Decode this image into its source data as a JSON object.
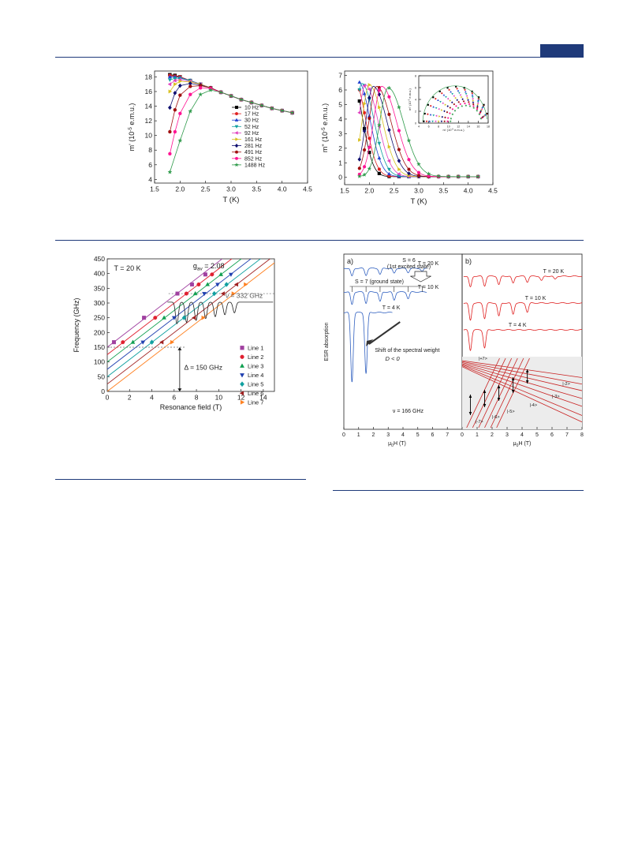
{
  "page": {
    "badge_color": "#1f3a7a",
    "rule_color": "#1f3a7a"
  },
  "chart_data": [
    {
      "id": "ac-real",
      "type": "line",
      "xlabel": "T (K)",
      "ylabel": "m' (10",
      "ylabel_exp": "-5",
      "ylabel_unit": " e.m.u.)",
      "xlim": [
        1.5,
        4.5
      ],
      "ylim": [
        3.5,
        18.8
      ],
      "xticks": [
        1.5,
        2.0,
        2.5,
        3.0,
        3.5,
        4.0,
        4.5
      ],
      "yticks": [
        4,
        6,
        8,
        10,
        12,
        14,
        16,
        18
      ],
      "legend_position": "center-right",
      "series": [
        {
          "name": "10 Hz",
          "color": "#000000",
          "marker": "square",
          "points": [
            [
              1.8,
              18.3
            ],
            [
              1.9,
              18.2
            ],
            [
              2.0,
              18.0
            ],
            [
              2.2,
              17.5
            ],
            [
              2.4,
              17.0
            ],
            [
              2.6,
              16.5
            ],
            [
              2.8,
              15.9
            ],
            [
              3.0,
              15.4
            ],
            [
              3.2,
              14.9
            ],
            [
              3.4,
              14.5
            ],
            [
              3.6,
              14.1
            ],
            [
              3.8,
              13.7
            ],
            [
              4.0,
              13.4
            ],
            [
              4.2,
              13.1
            ]
          ]
        },
        {
          "name": "17 Hz",
          "color": "#e02020",
          "marker": "circle",
          "points": [
            [
              1.8,
              18.2
            ],
            [
              1.9,
              18.1
            ],
            [
              2.0,
              18.0
            ],
            [
              2.2,
              17.5
            ],
            [
              2.4,
              17.0
            ],
            [
              2.6,
              16.5
            ],
            [
              2.8,
              15.9
            ],
            [
              3.0,
              15.4
            ],
            [
              3.2,
              14.9
            ],
            [
              3.4,
              14.5
            ],
            [
              3.6,
              14.1
            ],
            [
              3.8,
              13.7
            ],
            [
              4.0,
              13.4
            ],
            [
              4.2,
              13.1
            ]
          ]
        },
        {
          "name": "30 Hz",
          "color": "#2040d0",
          "marker": "triangle",
          "points": [
            [
              1.8,
              18.0
            ],
            [
              1.9,
              18.0
            ],
            [
              2.0,
              17.9
            ],
            [
              2.2,
              17.5
            ],
            [
              2.4,
              17.0
            ],
            [
              2.6,
              16.5
            ],
            [
              2.8,
              15.9
            ],
            [
              3.0,
              15.4
            ],
            [
              3.2,
              14.9
            ],
            [
              3.4,
              14.5
            ],
            [
              3.6,
              14.1
            ],
            [
              3.8,
              13.7
            ],
            [
              4.0,
              13.4
            ],
            [
              4.2,
              13.1
            ]
          ]
        },
        {
          "name": "52 Hz",
          "color": "#10a0a0",
          "marker": "tri-down",
          "points": [
            [
              1.8,
              17.6
            ],
            [
              1.9,
              17.8
            ],
            [
              2.0,
              17.8
            ],
            [
              2.2,
              17.5
            ],
            [
              2.4,
              17.0
            ],
            [
              2.6,
              16.5
            ],
            [
              2.8,
              15.9
            ],
            [
              3.0,
              15.4
            ],
            [
              3.2,
              14.9
            ],
            [
              3.4,
              14.5
            ],
            [
              3.6,
              14.1
            ],
            [
              3.8,
              13.7
            ],
            [
              4.0,
              13.4
            ],
            [
              4.2,
              13.1
            ]
          ]
        },
        {
          "name": "92 Hz",
          "color": "#e040c0",
          "marker": "tri-left",
          "points": [
            [
              1.8,
              17.0
            ],
            [
              1.9,
              17.5
            ],
            [
              2.0,
              17.6
            ],
            [
              2.2,
              17.4
            ],
            [
              2.4,
              17.0
            ],
            [
              2.6,
              16.5
            ],
            [
              2.8,
              15.9
            ],
            [
              3.0,
              15.4
            ],
            [
              3.2,
              14.9
            ],
            [
              3.4,
              14.5
            ],
            [
              3.6,
              14.1
            ],
            [
              3.8,
              13.7
            ],
            [
              4.0,
              13.4
            ],
            [
              4.2,
              13.1
            ]
          ]
        },
        {
          "name": "161 Hz",
          "color": "#d8c020",
          "marker": "tri-right",
          "points": [
            [
              1.8,
              16.0
            ],
            [
              1.9,
              17.0
            ],
            [
              2.0,
              17.4
            ],
            [
              2.2,
              17.3
            ],
            [
              2.4,
              17.0
            ],
            [
              2.6,
              16.5
            ],
            [
              2.8,
              15.9
            ],
            [
              3.0,
              15.4
            ],
            [
              3.2,
              14.9
            ],
            [
              3.4,
              14.5
            ],
            [
              3.6,
              14.1
            ],
            [
              3.8,
              13.7
            ],
            [
              4.0,
              13.4
            ],
            [
              4.2,
              13.1
            ]
          ]
        },
        {
          "name": "281 Hz",
          "color": "#101070",
          "marker": "diamond",
          "points": [
            [
              1.8,
              13.8
            ],
            [
              1.9,
              15.8
            ],
            [
              2.0,
              16.8
            ],
            [
              2.2,
              17.1
            ],
            [
              2.4,
              16.9
            ],
            [
              2.6,
              16.5
            ],
            [
              2.8,
              15.9
            ],
            [
              3.0,
              15.4
            ],
            [
              3.2,
              14.9
            ],
            [
              3.4,
              14.5
            ],
            [
              3.6,
              14.1
            ],
            [
              3.8,
              13.7
            ],
            [
              4.0,
              13.4
            ],
            [
              4.2,
              13.1
            ]
          ]
        },
        {
          "name": "491 Hz",
          "color": "#a01010",
          "marker": "circle",
          "points": [
            [
              1.8,
              10.5
            ],
            [
              1.9,
              13.5
            ],
            [
              2.0,
              15.5
            ],
            [
              2.2,
              16.7
            ],
            [
              2.4,
              16.8
            ],
            [
              2.6,
              16.5
            ],
            [
              2.8,
              15.9
            ],
            [
              3.0,
              15.4
            ],
            [
              3.2,
              14.9
            ],
            [
              3.4,
              14.5
            ],
            [
              3.6,
              14.1
            ],
            [
              3.8,
              13.7
            ],
            [
              4.0,
              13.4
            ],
            [
              4.2,
              13.1
            ]
          ]
        },
        {
          "name": "852 Hz",
          "color": "#ff1493",
          "marker": "circle",
          "points": [
            [
              1.8,
              7.5
            ],
            [
              1.9,
              10.5
            ],
            [
              2.0,
              13.0
            ],
            [
              2.2,
              15.6
            ],
            [
              2.4,
              16.5
            ],
            [
              2.6,
              16.4
            ],
            [
              2.8,
              15.9
            ],
            [
              3.0,
              15.4
            ],
            [
              3.2,
              14.9
            ],
            [
              3.4,
              14.5
            ],
            [
              3.6,
              14.1
            ],
            [
              3.8,
              13.7
            ],
            [
              4.0,
              13.4
            ],
            [
              4.2,
              13.1
            ]
          ]
        },
        {
          "name": "1488 Hz",
          "color": "#2e9a4a",
          "marker": "star",
          "points": [
            [
              1.8,
              5.0
            ],
            [
              2.0,
              9.3
            ],
            [
              2.2,
              13.3
            ],
            [
              2.4,
              15.6
            ],
            [
              2.6,
              16.2
            ],
            [
              2.8,
              15.9
            ],
            [
              3.0,
              15.4
            ],
            [
              3.2,
              14.9
            ],
            [
              3.4,
              14.5
            ],
            [
              3.6,
              14.1
            ],
            [
              3.8,
              13.7
            ],
            [
              4.0,
              13.4
            ],
            [
              4.2,
              13.1
            ]
          ]
        }
      ]
    },
    {
      "id": "ac-imag",
      "type": "line",
      "xlabel": "T (K)",
      "ylabel": "m\" (10",
      "ylabel_exp": "-5",
      "ylabel_unit": " e.m.u.)",
      "xlim": [
        1.5,
        4.5
      ],
      "ylim": [
        -0.5,
        7.3
      ],
      "xticks": [
        1.5,
        2.0,
        2.5,
        3.0,
        3.5,
        4.0,
        4.5
      ],
      "yticks": [
        0,
        1,
        2,
        3,
        4,
        5,
        6,
        7
      ],
      "peak_T": [
        1.65,
        1.7,
        1.78,
        1.85,
        1.92,
        2.0,
        2.08,
        2.15,
        2.25,
        2.38
      ],
      "peak_height": [
        6.7,
        6.6,
        6.5,
        6.4,
        6.3,
        6.3,
        6.2,
        6.2,
        6.2,
        6.1
      ],
      "colors": [
        "#000000",
        "#e02020",
        "#2040d0",
        "#10a0a0",
        "#e040c0",
        "#d8c020",
        "#101070",
        "#a01010",
        "#ff1493",
        "#2e9a4a"
      ],
      "inset": {
        "xlabel": "m' (10",
        "xlabel_exp": "-5",
        "xlabel_unit": " e.m.u.)",
        "ylabel": "m\" (10",
        "ylabel_exp": "-5",
        "ylabel_unit": " e.m.u.)",
        "xlim": [
          4,
          18
        ],
        "ylim": [
          0,
          8
        ],
        "xticks": [
          4,
          6,
          8,
          10,
          12,
          14,
          16,
          18
        ],
        "yticks": [
          0,
          2,
          4,
          6,
          8
        ]
      }
    },
    {
      "id": "freq-field",
      "type": "line",
      "xlabel": "Resonance field (T)",
      "ylabel": "Frequency (GHz)",
      "xlim": [
        0,
        15
      ],
      "ylim": [
        0,
        450
      ],
      "xticks": [
        0,
        2,
        4,
        6,
        8,
        10,
        12,
        14
      ],
      "yticks": [
        0,
        50,
        100,
        150,
        200,
        250,
        300,
        350,
        400,
        450
      ],
      "temperature_label": "T = 20 K",
      "g_label": "g",
      "g_sub": "av",
      "g_value": " = 2.08",
      "slope_ghz_per_T": 29.1,
      "gap_label": "Δ = 150 GHz",
      "gap_ghz": 150,
      "freq_label": "ν = 332 GHz",
      "freq_ghz": 332,
      "legend_position": "lower-right",
      "series": [
        {
          "name": "Line 1",
          "color": "#a040a0",
          "marker": "square",
          "intercept": 150,
          "points": [
            [
              0.6,
              167
            ],
            [
              3.3,
              250
            ],
            [
              6.3,
              332
            ],
            [
              7.6,
              363
            ],
            [
              8.8,
              397
            ]
          ]
        },
        {
          "name": "Line 2",
          "color": "#e02030",
          "marker": "circle",
          "intercept": 125,
          "points": [
            [
              1.4,
              167
            ],
            [
              4.3,
              250
            ],
            [
              7.1,
              332
            ],
            [
              8.2,
              363
            ],
            [
              9.4,
              397
            ]
          ]
        },
        {
          "name": "Line 3",
          "color": "#10a050",
          "marker": "triangle",
          "intercept": 100,
          "points": [
            [
              2.3,
              167
            ],
            [
              5.1,
              250
            ],
            [
              7.9,
              332
            ],
            [
              9.0,
              363
            ],
            [
              10.2,
              397
            ]
          ]
        },
        {
          "name": "Line 4",
          "color": "#2040b0",
          "marker": "tri-down",
          "intercept": 75,
          "points": [
            [
              3.2,
              167
            ],
            [
              6.0,
              250
            ],
            [
              8.7,
              332
            ],
            [
              9.9,
              363
            ],
            [
              11.1,
              397
            ]
          ]
        },
        {
          "name": "Line 5",
          "color": "#10a0a0",
          "marker": "diamond",
          "intercept": 50,
          "points": [
            [
              4.0,
              167
            ],
            [
              6.9,
              250
            ],
            [
              9.6,
              332
            ],
            [
              10.7,
              363
            ]
          ]
        },
        {
          "name": "Line 6",
          "color": "#a02020",
          "marker": "tri-left",
          "intercept": 25,
          "points": [
            [
              4.9,
              167
            ],
            [
              7.8,
              250
            ],
            [
              10.4,
              332
            ],
            [
              11.6,
              363
            ]
          ]
        },
        {
          "name": "Line 7",
          "color": "#ff8020",
          "marker": "tri-right",
          "intercept": 0,
          "points": [
            [
              5.8,
              167
            ],
            [
              8.6,
              250
            ],
            [
              11.3,
              332
            ],
            [
              12.4,
              363
            ]
          ]
        }
      ]
    },
    {
      "id": "esr-spectra",
      "type": "line",
      "panel_a": {
        "label": "a)",
        "ylabel": "ESR absorption",
        "xlabel": "μ",
        "xlabel_sub": "0",
        "xlabel_unit": "H (T)",
        "xlim": [
          0,
          8
        ],
        "xticks": [
          0,
          1,
          2,
          3,
          4,
          5,
          6,
          7
        ],
        "excited_state_label": "S = 6",
        "excited_state_note": "(1st excited state)",
        "ground_state_label": "S = 7 (ground state)",
        "spectral_shift_label": "Shift of the spectral weight",
        "d_label": "D < 0",
        "freq_label": "ν = 166 GHz",
        "traces": [
          {
            "label": "T = 20 K",
            "color": "#3060c0",
            "dips": [
              0.55,
              1.5,
              2.45,
              3.4,
              4.35,
              5.3,
              6.2
            ]
          },
          {
            "label": "T = 10 K",
            "color": "#3060c0",
            "dips": [
              0.55,
              1.5,
              2.45,
              3.4,
              4.35
            ]
          },
          {
            "label": "T = 4 K",
            "color": "#3060c0",
            "dips": [
              0.55,
              1.5
            ]
          }
        ]
      },
      "panel_b": {
        "label": "b)",
        "xlabel": "μ",
        "xlabel_sub": "0",
        "xlabel_unit": "H (T)",
        "xlim": [
          0,
          8
        ],
        "xticks": [
          0,
          1,
          2,
          3,
          4,
          5,
          6,
          7,
          8
        ],
        "traces": [
          {
            "label": "T = 20 K",
            "color": "#e02020",
            "dips": [
              0.55,
              1.5,
              2.45,
              3.4,
              4.35,
              5.3,
              6.2
            ]
          },
          {
            "label": "T = 10 K",
            "color": "#e02020",
            "dips": [
              0.55,
              1.5,
              2.45,
              3.4,
              4.35
            ]
          },
          {
            "label": "T = 4 K",
            "color": "#e02020",
            "dips": [
              0.55,
              1.5
            ]
          }
        ],
        "level_labels": [
          "|+7>",
          "|-2>",
          "|-3>",
          "|-4>",
          "|-5>",
          "|-6>",
          "|-7>"
        ]
      }
    }
  ]
}
